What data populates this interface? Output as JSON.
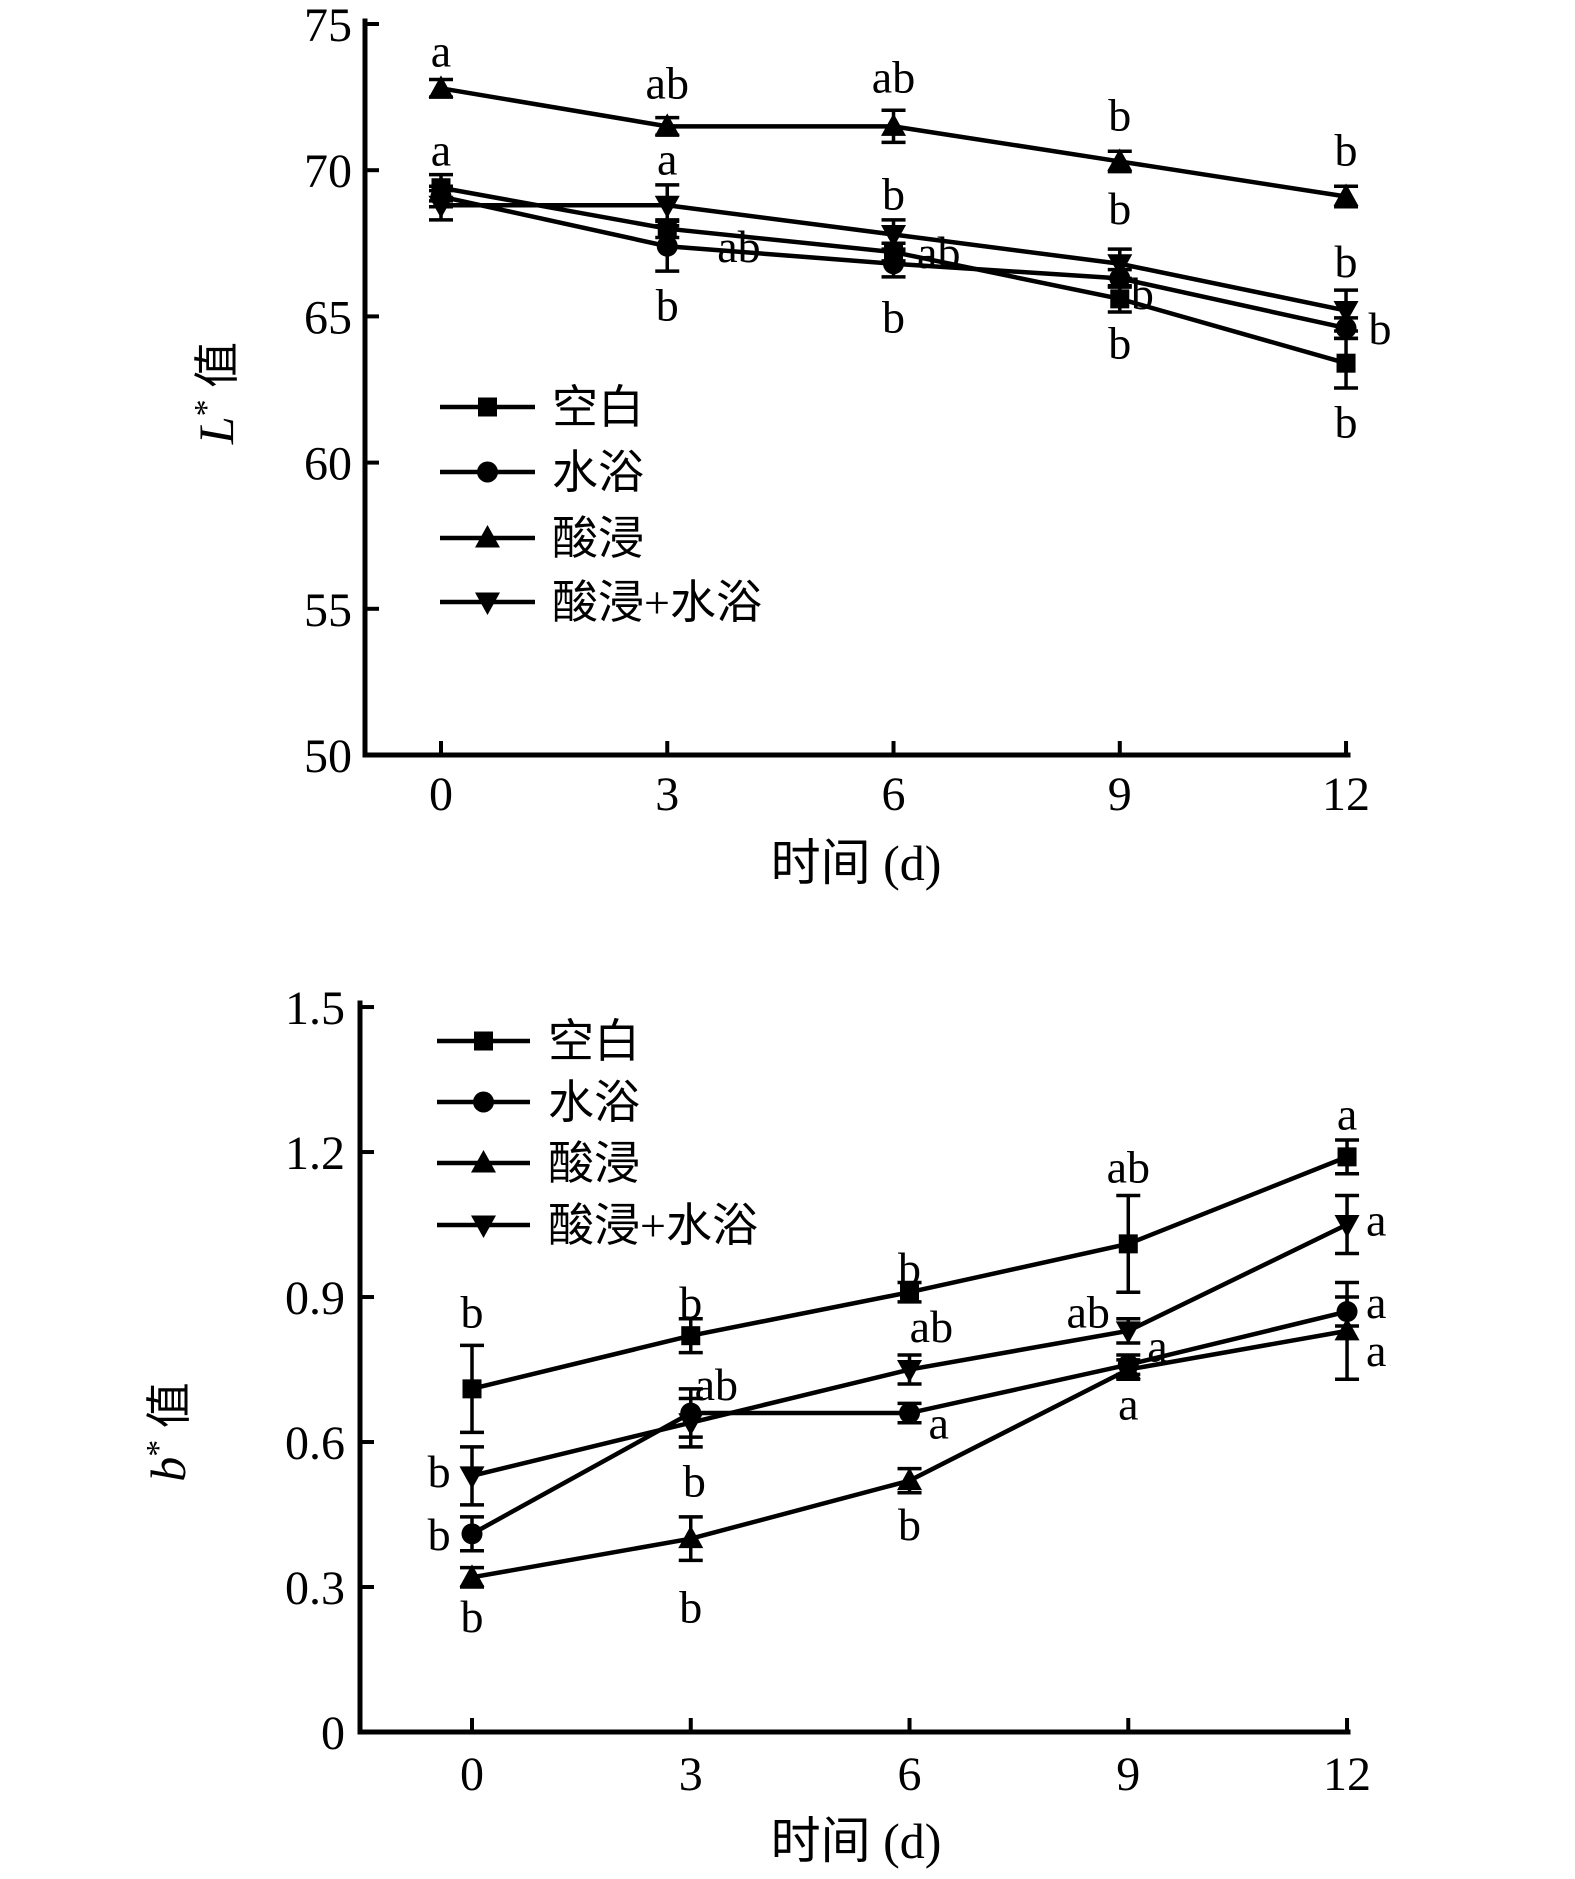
{
  "page": {
    "background": "#ffffff",
    "ink_color": "#000000"
  },
  "chart_data": [
    {
      "id": "L-star",
      "type": "line",
      "title": "",
      "xlabel": "时间 (d)",
      "ylabel": "L*值",
      "ylabel_parts": {
        "var": "L",
        "sup": "*",
        "cjk": " 值"
      },
      "x": [
        0,
        3,
        6,
        9,
        12
      ],
      "x_tick_labels": [
        "0",
        "3",
        "6",
        "9",
        "12"
      ],
      "y_ticks": [
        50,
        55,
        60,
        65,
        70,
        75
      ],
      "y_tick_labels": [
        "50",
        "55",
        "60",
        "65",
        "70",
        "75"
      ],
      "ylim": [
        50,
        75
      ],
      "xlim": [
        -1,
        12
      ],
      "grid": false,
      "legend_position": "inside-left-middle",
      "legend": [
        "空白",
        "水浴",
        "酸浸",
        "酸浸+水浴"
      ],
      "series": [
        {
          "name": "空白",
          "marker": "square",
          "values": [
            69.4,
            68.0,
            67.2,
            65.6,
            63.4
          ],
          "errors": [
            0.45,
            0.3,
            0.3,
            0.45,
            0.85
          ]
        },
        {
          "name": "水浴",
          "marker": "circle",
          "values": [
            69.1,
            67.4,
            66.8,
            66.3,
            64.6
          ],
          "errors": [
            0.35,
            0.85,
            0.45,
            0.3,
            0.35
          ]
        },
        {
          "name": "酸浸",
          "marker": "triangle-up",
          "values": [
            72.8,
            71.5,
            71.5,
            70.3,
            69.1
          ],
          "errors": [
            0.3,
            0.3,
            0.55,
            0.35,
            0.35
          ]
        },
        {
          "name": "酸浸+水浴",
          "marker": "triangle-down",
          "values": [
            68.8,
            68.8,
            67.8,
            66.8,
            65.2
          ],
          "errors": [
            0.5,
            0.7,
            0.5,
            0.5,
            0.7
          ]
        }
      ],
      "annotations": [
        {
          "x": 0,
          "y": 74.1,
          "text": "a"
        },
        {
          "x": 0,
          "y": 70.7,
          "text": "a"
        },
        {
          "x": 3,
          "y": 73.0,
          "text": "ab"
        },
        {
          "x": 3,
          "y": 70.4,
          "text": "a"
        },
        {
          "x": 3.95,
          "y": 67.4,
          "text": "ab"
        },
        {
          "x": 3,
          "y": 65.4,
          "text": "b"
        },
        {
          "x": 6,
          "y": 73.2,
          "text": "ab"
        },
        {
          "x": 6,
          "y": 69.2,
          "text": "b"
        },
        {
          "x": 6.6,
          "y": 67.2,
          "text": "ab"
        },
        {
          "x": 6,
          "y": 65.0,
          "text": "b"
        },
        {
          "x": 9,
          "y": 71.9,
          "text": "b"
        },
        {
          "x": 9,
          "y": 68.7,
          "text": "b"
        },
        {
          "x": 9.3,
          "y": 65.8,
          "text": "b"
        },
        {
          "x": 9,
          "y": 64.1,
          "text": "b"
        },
        {
          "x": 12,
          "y": 70.7,
          "text": "b"
        },
        {
          "x": 12,
          "y": 66.9,
          "text": "b"
        },
        {
          "x": 12.45,
          "y": 64.6,
          "text": "b"
        },
        {
          "x": 12,
          "y": 61.4,
          "text": "b"
        }
      ]
    },
    {
      "id": "b-star",
      "type": "line",
      "title": "",
      "xlabel": "时间 (d)",
      "ylabel": "b*值",
      "ylabel_parts": {
        "var": "b",
        "sup": "*",
        "cjk": " 值"
      },
      "x": [
        0,
        3,
        6,
        9,
        12
      ],
      "x_tick_labels": [
        "0",
        "3",
        "6",
        "9",
        "12"
      ],
      "y_ticks": [
        0,
        0.3,
        0.6,
        0.9,
        1.2,
        1.5
      ],
      "y_tick_labels": [
        "0",
        "0.3",
        "0.6",
        "0.9",
        "1.2",
        "1.5"
      ],
      "ylim": [
        0,
        1.5
      ],
      "xlim": [
        -1.5,
        12
      ],
      "grid": false,
      "legend_position": "inside-left-top",
      "legend": [
        "空白",
        "水浴",
        "酸浸",
        "酸浸+水浴"
      ],
      "series": [
        {
          "name": "空白",
          "marker": "square",
          "values": [
            0.71,
            0.82,
            0.91,
            1.01,
            1.19
          ],
          "errors": [
            0.09,
            0.035,
            0.02,
            0.1,
            0.035
          ]
        },
        {
          "name": "水浴",
          "marker": "circle",
          "values": [
            0.41,
            0.66,
            0.66,
            0.76,
            0.87
          ],
          "errors": [
            0.035,
            0.05,
            0.02,
            0.02,
            0.03
          ]
        },
        {
          "name": "酸浸",
          "marker": "triangle-up",
          "values": [
            0.32,
            0.4,
            0.52,
            0.75,
            0.83
          ],
          "errors": [
            0.02,
            0.045,
            0.025,
            0.02,
            0.1
          ]
        },
        {
          "name": "酸浸+水浴",
          "marker": "triangle-down",
          "values": [
            0.53,
            0.64,
            0.75,
            0.83,
            1.05
          ],
          "errors": [
            0.06,
            0.05,
            0.03,
            0.025,
            0.06
          ]
        }
      ],
      "annotations": [
        {
          "x": 0,
          "y": 0.87,
          "text": "b"
        },
        {
          "x": -0.45,
          "y": 0.54,
          "text": "b"
        },
        {
          "x": -0.45,
          "y": 0.41,
          "text": "b"
        },
        {
          "x": 0,
          "y": 0.24,
          "text": "b"
        },
        {
          "x": 3,
          "y": 0.89,
          "text": "b"
        },
        {
          "x": 3.35,
          "y": 0.72,
          "text": "ab"
        },
        {
          "x": 3.05,
          "y": 0.52,
          "text": "b"
        },
        {
          "x": 3,
          "y": 0.26,
          "text": "b"
        },
        {
          "x": 6,
          "y": 0.96,
          "text": "b"
        },
        {
          "x": 6.3,
          "y": 0.84,
          "text": "ab"
        },
        {
          "x": 6.4,
          "y": 0.64,
          "text": "a"
        },
        {
          "x": 6,
          "y": 0.43,
          "text": "b"
        },
        {
          "x": 9,
          "y": 1.17,
          "text": "ab"
        },
        {
          "x": 8.45,
          "y": 0.87,
          "text": "ab"
        },
        {
          "x": 9.4,
          "y": 0.8,
          "text": "a"
        },
        {
          "x": 9,
          "y": 0.68,
          "text": "a"
        },
        {
          "x": 12,
          "y": 1.28,
          "text": "a"
        },
        {
          "x": 12.4,
          "y": 1.06,
          "text": "a"
        },
        {
          "x": 12.4,
          "y": 0.89,
          "text": "a"
        },
        {
          "x": 12.4,
          "y": 0.79,
          "text": "a"
        }
      ]
    }
  ]
}
